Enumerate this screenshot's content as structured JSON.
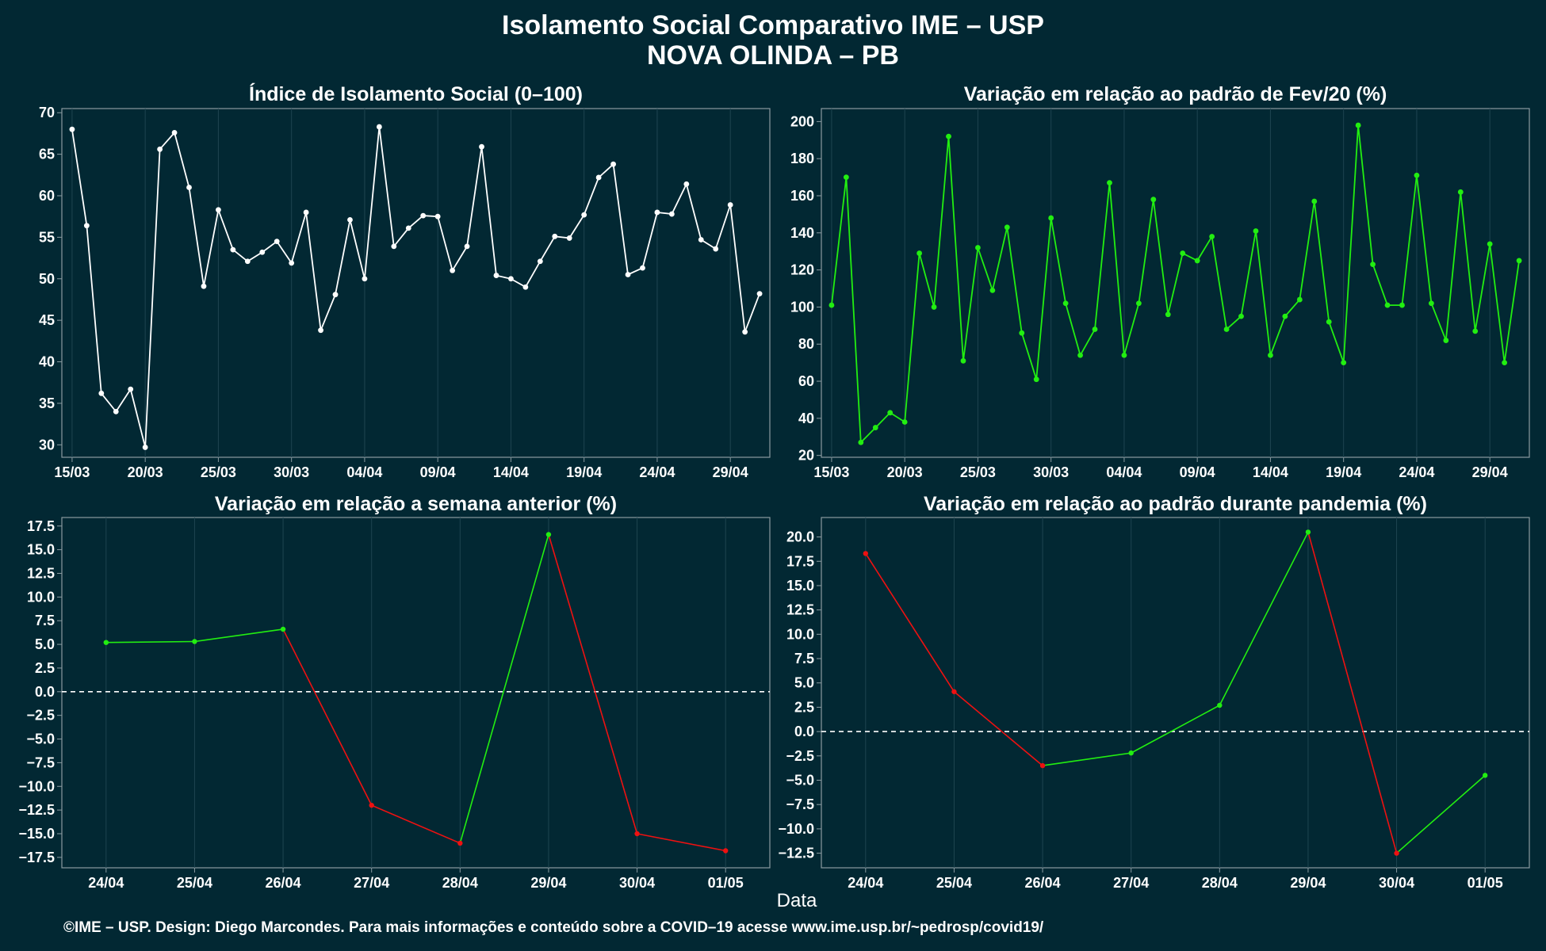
{
  "title_line1": "Isolamento Social Comparativo IME – USP",
  "title_line2": "NOVA OLINDA – PB",
  "footer": "©IME – USP. Design: Diego Marcondes. Para mais informações e conteúdo sobre a COVID–19 acesse www.ime.usp.br/~pedrosp/covid19/",
  "xlabel": "Data",
  "colors": {
    "background": "#022833",
    "plot_background": "#022833",
    "panel_border": "#8a9aa0",
    "grid": "#1e4450",
    "white_line": "#ffffff",
    "green": "#22ee11",
    "red": "#ee1111"
  },
  "chart_data": [
    {
      "id": "isolation-index",
      "type": "line",
      "title": "Índice de Isolamento Social (0–100)",
      "x_tick_labels": [
        "15/03",
        "20/03",
        "25/03",
        "30/03",
        "04/04",
        "09/04",
        "14/04",
        "19/04",
        "24/04",
        "29/04"
      ],
      "y_ticks": [
        30,
        35,
        40,
        45,
        50,
        55,
        60,
        65,
        70
      ],
      "ylim": [
        28.5,
        70.5
      ],
      "color": "#ffffff",
      "x_start": "15/03",
      "values": [
        68.0,
        56.4,
        36.2,
        34.0,
        36.7,
        29.7,
        65.6,
        67.6,
        61.0,
        49.1,
        58.3,
        53.5,
        52.1,
        53.2,
        54.5,
        51.9,
        58.0,
        43.8,
        48.1,
        57.1,
        50.0,
        68.3,
        53.9,
        56.1,
        57.6,
        57.5,
        51.0,
        53.9,
        65.9,
        50.4,
        50.0,
        49.0,
        52.1,
        55.1,
        54.9,
        57.7,
        62.2,
        63.8,
        50.5,
        51.3,
        58.0,
        57.8,
        61.4,
        54.7,
        53.6,
        58.9,
        43.6,
        48.2
      ]
    },
    {
      "id": "variation-feb",
      "type": "line",
      "title": "Variação em relação ao padrão de Fev/20 (%)",
      "x_tick_labels": [
        "15/03",
        "20/03",
        "25/03",
        "30/03",
        "04/04",
        "09/04",
        "14/04",
        "19/04",
        "24/04",
        "29/04"
      ],
      "y_ticks": [
        20,
        40,
        60,
        80,
        100,
        120,
        140,
        160,
        180,
        200
      ],
      "ylim": [
        19,
        207
      ],
      "color": "#22ee11",
      "x_start": "15/03",
      "values": [
        101,
        170,
        27,
        35,
        43,
        38,
        129,
        100,
        192,
        71,
        132,
        109,
        143,
        86,
        61,
        148,
        102,
        74,
        88,
        167,
        74,
        102,
        158,
        96,
        129,
        125,
        138,
        88,
        95,
        141,
        74,
        95,
        104,
        157,
        92,
        70,
        198,
        123,
        101,
        101,
        171,
        102,
        82,
        162,
        87,
        134,
        70,
        125
      ]
    },
    {
      "id": "variation-week",
      "type": "line",
      "title": "Variação em relação a semana anterior (%)",
      "categories": [
        "24/04",
        "25/04",
        "26/04",
        "27/04",
        "28/04",
        "29/04",
        "30/04",
        "01/05"
      ],
      "y_ticks": [
        -17.5,
        -15.0,
        -12.5,
        -10.0,
        -7.5,
        -5.0,
        -2.5,
        0.0,
        2.5,
        5.0,
        7.5,
        10.0,
        12.5,
        15.0,
        17.5
      ],
      "ylim": [
        -18.6,
        18.4
      ],
      "reference_line": 0,
      "up_color": "#22ee11",
      "down_color": "#ee1111",
      "values": [
        5.2,
        5.3,
        6.6,
        -12.0,
        -16.0,
        16.6,
        -15.0,
        -16.8
      ]
    },
    {
      "id": "variation-pandemic",
      "type": "line",
      "title": "Variação em relação ao padrão durante pandemia (%)",
      "categories": [
        "24/04",
        "25/04",
        "26/04",
        "27/04",
        "28/04",
        "29/04",
        "30/04",
        "01/05"
      ],
      "y_ticks": [
        -12.5,
        -10.0,
        -7.5,
        -5.0,
        -2.5,
        0.0,
        2.5,
        5.0,
        7.5,
        10.0,
        12.5,
        15.0,
        17.5,
        20.0
      ],
      "ylim": [
        -14.0,
        22.0
      ],
      "reference_line": 0,
      "up_color": "#22ee11",
      "down_color": "#ee1111",
      "values": [
        18.3,
        4.1,
        -3.5,
        -2.2,
        2.7,
        20.5,
        -12.5,
        -4.5
      ]
    }
  ]
}
